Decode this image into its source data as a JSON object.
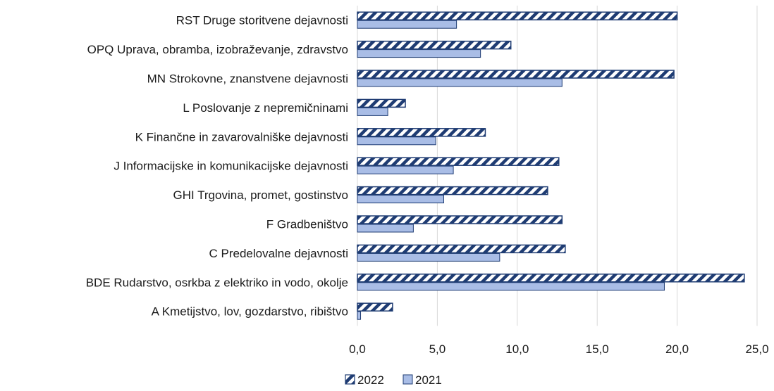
{
  "chart_data": {
    "type": "bar",
    "orientation": "horizontal",
    "categories": [
      "RST Druge storitvene dejavnosti",
      "OPQ Uprava, obramba, izobraževanje, zdravstvo",
      "MN Strokovne, znanstvene dejavnosti",
      "L Poslovanje z nepremičninami",
      "K Finančne in zavarovalniške dejavnosti",
      "J Informacijske in komunikacijske dejavnosti",
      "GHI Trgovina, promet, gostinstvo",
      "F Gradbeništvo",
      "C Predelovalne dejavnosti",
      "BDE Rudarstvo, osrkba z elektriko in vodo, okolje",
      "A Kmetijstvo, lov, gozdarstvo, ribištvo"
    ],
    "series": [
      {
        "name": "2022",
        "color": "#1f3c73",
        "pattern": "diagonal-stripes",
        "values": [
          20.0,
          9.6,
          19.8,
          3.0,
          8.0,
          12.6,
          11.9,
          12.8,
          13.0,
          24.2,
          2.2
        ]
      },
      {
        "name": "2021",
        "color": "#a9bde6",
        "pattern": "solid",
        "values": [
          6.2,
          7.7,
          12.8,
          1.9,
          4.9,
          6.0,
          5.4,
          3.5,
          8.9,
          19.2,
          0.2
        ]
      }
    ],
    "xlim": [
      0,
      25
    ],
    "xticks": [
      "0,0",
      "5,0",
      "10,0",
      "15,0",
      "20,0",
      "25,0"
    ],
    "xtick_values": [
      0,
      5,
      10,
      15,
      20,
      25
    ],
    "grid": true,
    "legend_position": "bottom-center",
    "title": "",
    "xlabel": "",
    "ylabel": ""
  }
}
